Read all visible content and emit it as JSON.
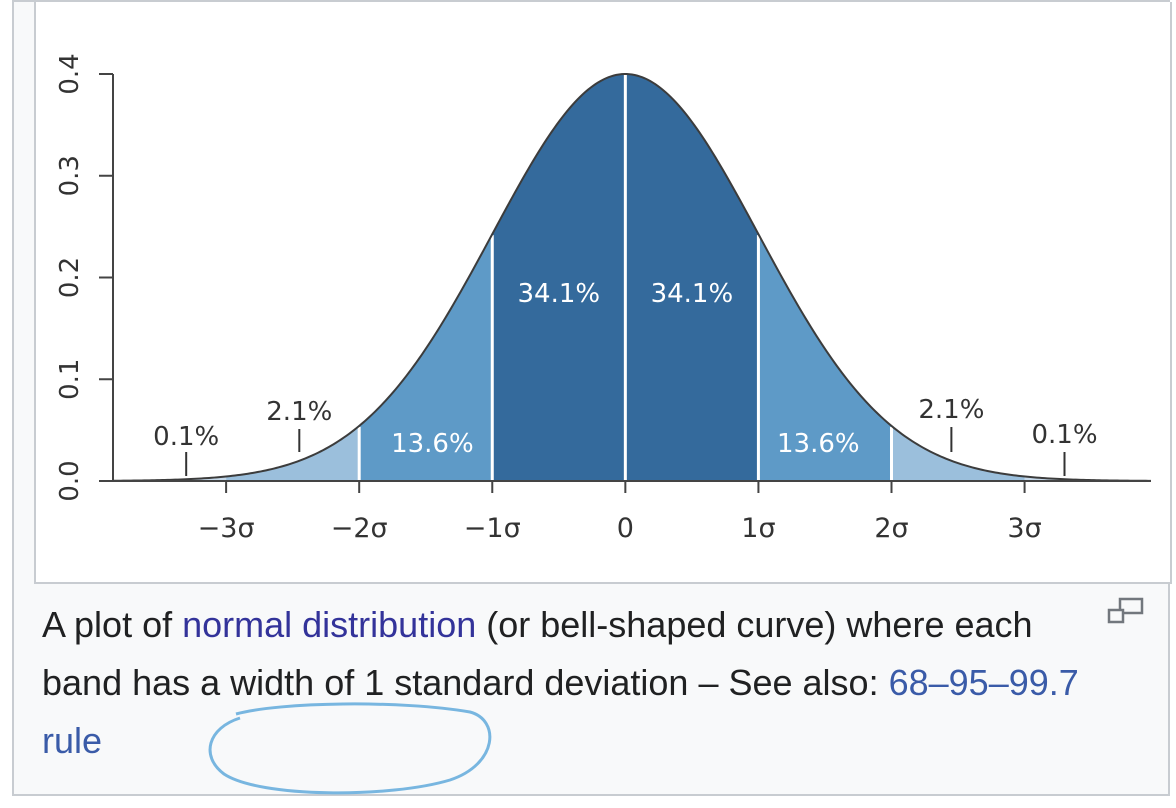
{
  "chart_data": {
    "type": "area",
    "title": "",
    "xlabel": "",
    "ylabel": "",
    "xlim": [
      -3.85,
      3.95
    ],
    "ylim": [
      0,
      0.4
    ],
    "yticks": [
      "0.0",
      "0.1",
      "0.2",
      "0.3",
      "0.4"
    ],
    "xticks": [
      {
        "x": -3,
        "label": "−3σ"
      },
      {
        "x": -2,
        "label": "−2σ"
      },
      {
        "x": -1,
        "label": "−1σ"
      },
      {
        "x": 0,
        "label": "0"
      },
      {
        "x": 1,
        "label": "1σ"
      },
      {
        "x": 2,
        "label": "2σ"
      },
      {
        "x": 3,
        "label": "3σ"
      }
    ],
    "curve": "normal pdf, mean 0, sd 1",
    "bands": [
      {
        "from": -3,
        "to": -2,
        "label": "2.1%",
        "color": "#9bbfdc"
      },
      {
        "from": -2,
        "to": -1,
        "label": "13.6%",
        "color": "#5e9ac7"
      },
      {
        "from": -1,
        "to": 0,
        "label": "34.1%",
        "color": "#346a9c"
      },
      {
        "from": 0,
        "to": 1,
        "label": "34.1%",
        "color": "#346a9c"
      },
      {
        "from": 1,
        "to": 2,
        "label": "13.6%",
        "color": "#5e9ac7"
      },
      {
        "from": 2,
        "to": 3,
        "label": "2.1%",
        "color": "#9bbfdc"
      }
    ],
    "tails": [
      {
        "side": "left",
        "label": "0.1%"
      },
      {
        "side": "right",
        "label": "0.1%"
      }
    ]
  },
  "caption": {
    "text1": "A plot of ",
    "link1": "normal distribution",
    "text2": " (or bell-shaped curve) where each band has a width of 1 standard deviation – See also: ",
    "link2": "68–95–99.7 rule"
  },
  "icons": {
    "enlarge": "enlarge-icon"
  }
}
